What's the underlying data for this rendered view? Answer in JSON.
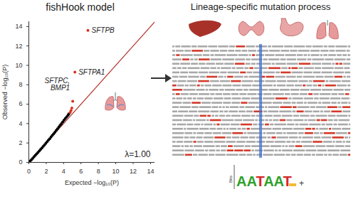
{
  "chart_data": {
    "type": "scatter",
    "title": "fishHook model",
    "x_label": "Expected −log₁₀(P)",
    "y_label": "Observed −log₁₀(P)",
    "x": [
      0.05,
      0.15,
      0.3,
      0.45,
      0.6,
      0.75,
      0.9,
      1.05,
      1.2,
      1.35,
      1.5,
      1.65,
      1.8,
      1.95,
      2.1,
      2.25,
      2.4,
      2.55,
      2.7,
      2.85,
      3.0,
      3.15,
      3.3,
      3.45,
      3.6,
      3.75,
      3.9,
      4.05,
      4.2,
      4.35,
      4.5,
      4.6,
      4.75,
      4.85,
      4.95,
      5.05,
      5.3,
      6.8
    ],
    "values": [
      0.05,
      0.14,
      0.28,
      0.43,
      0.58,
      0.73,
      0.88,
      1.03,
      1.18,
      1.33,
      1.49,
      1.64,
      1.8,
      1.96,
      2.12,
      2.28,
      2.44,
      2.61,
      2.78,
      2.95,
      3.12,
      3.29,
      3.46,
      3.64,
      3.82,
      4.0,
      4.18,
      4.36,
      4.52,
      4.68,
      4.85,
      5.0,
      5.15,
      5.35,
      5.6,
      6.3,
      9.3,
      13.6
    ],
    "colors": [
      "#000000",
      "#000000",
      "#000000",
      "#000000",
      "#000000",
      "#000000",
      "#000000",
      "#000000",
      "#000000",
      "#000000",
      "#000000",
      "#000000",
      "#000000",
      "#000000",
      "#000000",
      "#000000",
      "#000000",
      "#000000",
      "#000000",
      "#000000",
      "#000000",
      "#000000",
      "#000000",
      "#000000",
      "#000000",
      "#000000",
      "#000000",
      "#000000",
      "#000000",
      "#000000",
      "#000000",
      "#000000",
      "#d7301f",
      "#d7301f",
      "#d7301f",
      "#d7301f",
      "#d7301f",
      "#d7301f"
    ],
    "xlim": [
      0,
      14.5
    ],
    "ylim": [
      0,
      14.5
    ],
    "xticks": [
      0,
      2,
      4,
      6,
      8,
      10,
      12,
      14
    ],
    "yticks": [
      0,
      2,
      4,
      6,
      8,
      10,
      12,
      14
    ],
    "grid": false,
    "reference_line": {
      "x": [
        0,
        14.5
      ],
      "values": [
        0,
        14.5
      ],
      "color": "#b0302a"
    },
    "annotations": [
      {
        "text": "SFTPB",
        "x": 6.8,
        "y": 13.6
      },
      {
        "text": "SFTPA1",
        "x": 5.3,
        "y": 9.3
      },
      {
        "text": "SFTPC,\nBMP1",
        "x": 5.05,
        "y": 6.3
      },
      {
        "text": "λ=1.00"
      }
    ]
  },
  "diagram": {
    "title": "Lineage-specific mutation process",
    "motif": {
      "letters": "AATAAT",
      "axis_label": "Bits",
      "suffix": "+"
    }
  }
}
